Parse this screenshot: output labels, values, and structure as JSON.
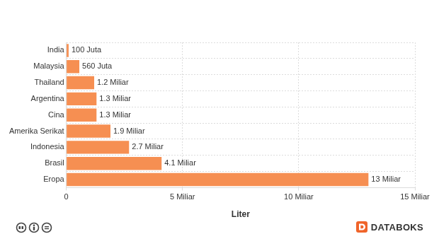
{
  "chart_data": {
    "type": "bar",
    "orientation": "horizontal",
    "categories": [
      "India",
      "Malaysia",
      "Thailand",
      "Argentina",
      "Cina",
      "Amerika Serikat",
      "Indonesia",
      "Brasil",
      "Eropa"
    ],
    "values": [
      0.1,
      0.56,
      1.2,
      1.3,
      1.3,
      1.9,
      2.7,
      4.1,
      13
    ],
    "value_labels": [
      "100 Juta",
      "560 Juta",
      "1.2 Miliar",
      "1.3 Miliar",
      "1.3 Miliar",
      "1.9 Miliar",
      "2.7 Miliar",
      "4.1 Miliar",
      "13 Miliar"
    ],
    "color": "#f68f52",
    "x_label": "Liter",
    "xlim": [
      0,
      15
    ],
    "xticks": [
      0,
      {
        "value": 5,
        "label": "5 Miliar"
      },
      {
        "value": 10,
        "label": "10 Miliar"
      },
      {
        "value": 15,
        "label": "15 Miliar"
      }
    ],
    "grid": true,
    "data_labels": true,
    "footer": "DATABOKS"
  }
}
